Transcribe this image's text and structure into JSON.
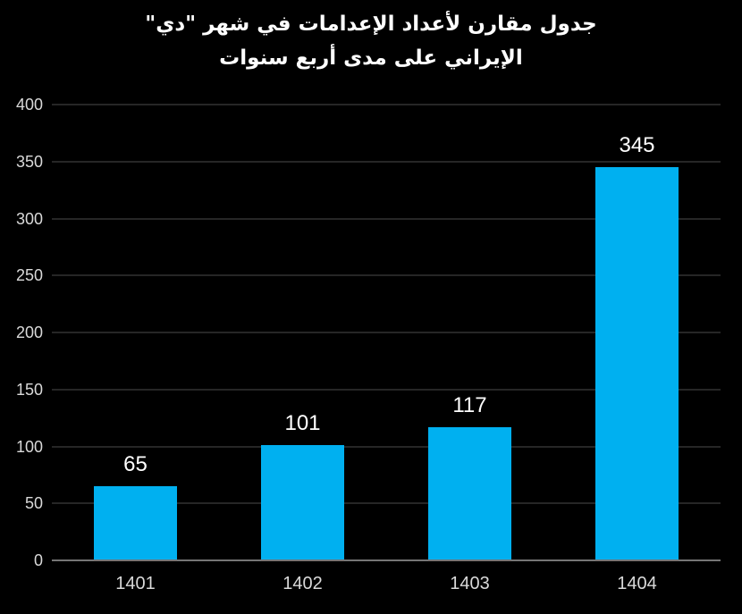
{
  "title": {
    "line1": "جدول مقارن لأعداد الإعدامات في شهر \"دي\"",
    "line2": "الإيراني على مدى أربع سنوات"
  },
  "colors": {
    "background": "#000000",
    "bar": "#00b0f0",
    "gridline": "#262626",
    "axis_line": "#757575",
    "tick_label": "#d9d9d9",
    "data_label": "#ffffff",
    "title_text": "#ffffff"
  },
  "chart_data": {
    "type": "bar",
    "title": "جدول مقارن لأعداد الإعدامات في شهر \"دي\" الإيراني على مدى أربع سنوات",
    "categories": [
      "1401",
      "1402",
      "1403",
      "1404"
    ],
    "values": [
      65,
      101,
      117,
      345
    ],
    "data_labels": [
      "65",
      "101",
      "117",
      "345"
    ],
    "y_ticks": [
      0,
      50,
      100,
      150,
      200,
      250,
      300,
      350,
      400
    ],
    "ylim": [
      0,
      400
    ],
    "xlabel": "",
    "ylabel": "",
    "grid": true,
    "legend": false,
    "orientation": "vertical",
    "bar_color": "#00b0f0",
    "background": "#000000"
  }
}
